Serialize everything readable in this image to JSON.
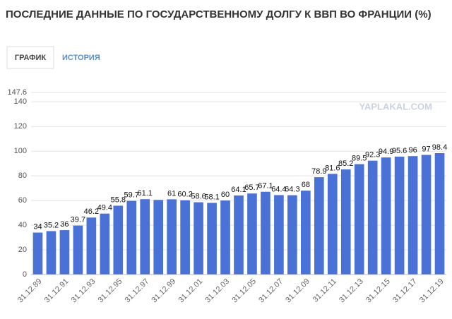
{
  "chart_data": {
    "type": "bar",
    "title": "ПОСЛЕДНИЕ ДАННЫЕ ПО ГОСУДАРСТВЕННОМУ ДОЛГУ К ВВП ВО ФРАНЦИИ (%)",
    "tabs": [
      "ГРАФИК",
      "ИСТОРИЯ"
    ],
    "watermark": "YAPLAKAL.COM",
    "categories": [
      "31.12.89",
      null,
      "31.12.91",
      null,
      "31.12.93",
      null,
      "31.12.95",
      null,
      "31.12.97",
      null,
      "31.12.99",
      null,
      "31.12.01",
      null,
      "31.12.03",
      null,
      "31.12.05",
      null,
      "31.12.07",
      null,
      "31.12.09",
      null,
      "31.12.11",
      null,
      "31.12.13",
      null,
      "31.12.15",
      null,
      "31.12.17",
      null,
      "31.12.19"
    ],
    "values": [
      34,
      35.2,
      36,
      39.7,
      46.2,
      49.4,
      55.8,
      59.7,
      61.1,
      60.5,
      61,
      60.2,
      58.6,
      58.1,
      60,
      64.1,
      65.7,
      67.1,
      64.4,
      64.3,
      68,
      78.9,
      81.6,
      85.2,
      89.5,
      92.3,
      94.9,
      95.6,
      96,
      97,
      98.4
    ],
    "value_labels": [
      "34",
      "35.2",
      "36",
      "39.7",
      "46.2",
      "49.4",
      "55.8",
      "59.7",
      "61.1",
      null,
      "61",
      "60.2",
      "58.6",
      "58.1",
      "60",
      "64.1",
      "65.7",
      "67.1",
      "64.4",
      "64.3",
      "68",
      "78.9",
      "81.6",
      "85.2",
      "89.5",
      "92.3",
      "94.9",
      "95.6",
      "96",
      "97",
      "98.4"
    ],
    "color": "#4a72d6",
    "ylim": [
      0,
      147.6
    ],
    "yticks": [
      0,
      20,
      40,
      60,
      80,
      100,
      120,
      140,
      147.6
    ],
    "grid": true
  }
}
